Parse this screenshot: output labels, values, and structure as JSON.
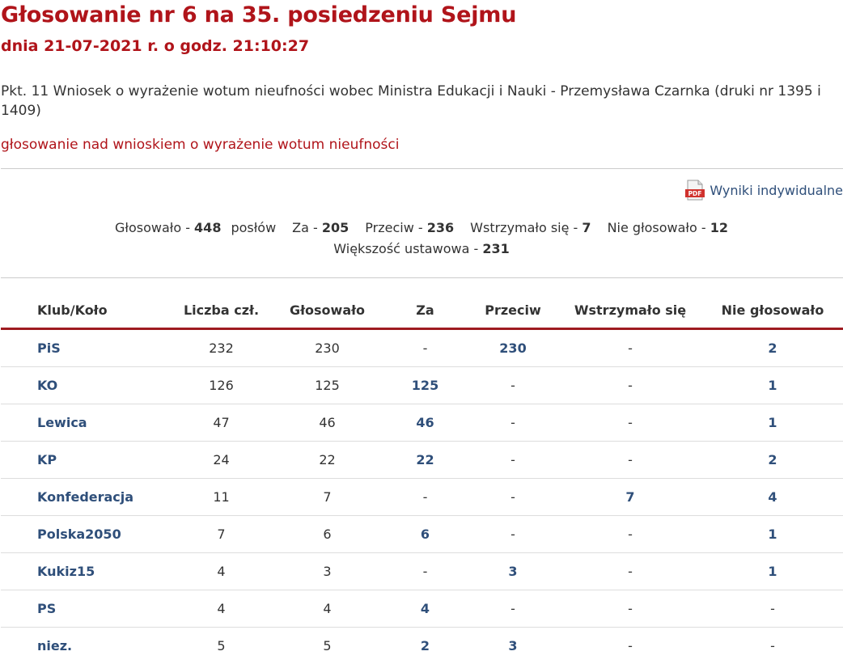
{
  "header": {
    "title": "Głosowanie nr 6 na 35. posiedzeniu Sejmu",
    "subtitle": "dnia 21-07-2021 r. o godz. 21:10:27"
  },
  "agenda": {
    "text": "Pkt. 11 Wniosek o wyrażenie wotum nieufności wobec Ministra Edukacji i Nauki - Przemysława Czarnka (druki nr 1395 i 1409)",
    "vote_topic": "głosowanie nad wnioskiem o wyrażenie wotum nieufności"
  },
  "pdf": {
    "icon_label": "PDF",
    "label": "Wyniki indywidualne"
  },
  "summary": {
    "voted_label": "Głosowało - ",
    "voted": "448",
    "voted_unit": "posłów",
    "for_label": "Za - ",
    "for": "205",
    "against_label": "Przeciw - ",
    "against": "236",
    "abstained_label": "Wstrzymało się - ",
    "abstained": "7",
    "absent_label": "Nie głosowało - ",
    "absent": "12",
    "majority_label": "Większość ustawowa - ",
    "majority": "231"
  },
  "table": {
    "headers": [
      "Klub/Koło",
      "Liczba czł.",
      "Głosowało",
      "Za",
      "Przeciw",
      "Wstrzymało się",
      "Nie głosowało"
    ],
    "rows": [
      [
        "PiS",
        "232",
        "230",
        "-",
        "230",
        "-",
        "2"
      ],
      [
        "KO",
        "126",
        "125",
        "125",
        "-",
        "-",
        "1"
      ],
      [
        "Lewica",
        "47",
        "46",
        "46",
        "-",
        "-",
        "1"
      ],
      [
        "KP",
        "24",
        "22",
        "22",
        "-",
        "-",
        "2"
      ],
      [
        "Konfederacja",
        "11",
        "7",
        "-",
        "-",
        "7",
        "4"
      ],
      [
        "Polska2050",
        "7",
        "6",
        "6",
        "-",
        "-",
        "1"
      ],
      [
        "Kukiz15",
        "4",
        "3",
        "-",
        "3",
        "-",
        "1"
      ],
      [
        "PS",
        "4",
        "4",
        "4",
        "-",
        "-",
        "-"
      ],
      [
        "niez.",
        "5",
        "5",
        "2",
        "3",
        "-",
        "-"
      ]
    ]
  },
  "colors": {
    "accent_red": "#b0141a",
    "link_blue": "#2f4f7a",
    "header_rule": "#9e1b20"
  }
}
